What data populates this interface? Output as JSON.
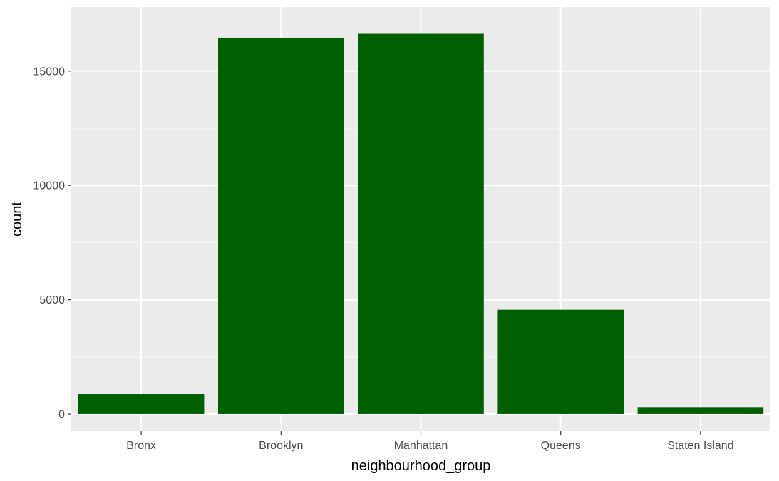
{
  "chart_data": {
    "type": "bar",
    "categories": [
      "Bronx",
      "Brooklyn",
      "Manhattan",
      "Queens",
      "Staten Island"
    ],
    "values": [
      870,
      16460,
      16630,
      4560,
      300
    ],
    "xlabel": "neighbourhood_group",
    "ylabel": "count",
    "ylim": [
      -750,
      17800
    ],
    "yticks": [
      0,
      5000,
      10000,
      15000
    ],
    "ytick_labels": [
      "0",
      "5000",
      "10000",
      "15000"
    ],
    "grid": true,
    "legend": "none",
    "colors": {
      "bar": "#005f00",
      "panel_background": "#ebebeb",
      "grid_major": "#ffffff",
      "grid_minor": "#f7f7f7",
      "tick_label": "#4d4d4d",
      "tick_mark": "#333333",
      "axis_title": "#000000"
    }
  }
}
